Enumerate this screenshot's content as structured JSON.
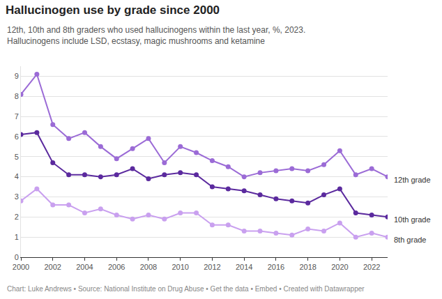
{
  "chart_data": {
    "type": "line",
    "title": "Hallucinogen use by grade since 2000",
    "subtitle": "12th, 10th and 8th graders who used hallucinogens within the last year, %, 2023. Hallucinogens include LSD, ecstasy, magic mushrooms and ketamine",
    "footer": "Chart: Luke Andrews • Source: National Institute on Drug Abuse • Get the data • Embed • Created with Datawrapper",
    "x": [
      2000,
      2001,
      2002,
      2003,
      2004,
      2005,
      2006,
      2007,
      2008,
      2009,
      2010,
      2011,
      2012,
      2013,
      2014,
      2015,
      2016,
      2017,
      2018,
      2019,
      2020,
      2021,
      2022,
      2023
    ],
    "series": [
      {
        "name": "12th grade",
        "color": "#9b6bd6",
        "values": [
          8.1,
          9.1,
          6.6,
          5.9,
          6.2,
          5.5,
          4.9,
          5.4,
          5.9,
          4.7,
          5.5,
          5.2,
          4.8,
          4.5,
          4.0,
          4.2,
          4.3,
          4.4,
          4.3,
          4.6,
          5.3,
          4.1,
          4.4,
          4.0
        ]
      },
      {
        "name": "10th grade",
        "color": "#5b2a9e",
        "values": [
          6.1,
          6.2,
          4.7,
          4.1,
          4.1,
          4.0,
          4.1,
          4.4,
          3.9,
          4.1,
          4.2,
          4.1,
          3.5,
          3.4,
          3.3,
          3.1,
          2.9,
          2.8,
          2.7,
          3.1,
          3.4,
          2.2,
          2.1,
          2.0
        ]
      },
      {
        "name": "8th grade",
        "color": "#c9a0ef",
        "values": [
          2.8,
          3.4,
          2.6,
          2.6,
          2.2,
          2.4,
          2.1,
          1.9,
          2.1,
          1.9,
          2.2,
          2.2,
          1.6,
          1.6,
          1.3,
          1.3,
          1.2,
          1.1,
          1.4,
          1.3,
          1.7,
          1.0,
          1.2,
          1.0
        ]
      }
    ],
    "xlim": [
      2000,
      2023
    ],
    "xticks": [
      2000,
      2002,
      2004,
      2006,
      2008,
      2010,
      2012,
      2014,
      2016,
      2018,
      2020,
      2022
    ],
    "ylim": [
      0,
      9.5
    ],
    "yticks": [
      0,
      1,
      2,
      3,
      4,
      5,
      6,
      7,
      8,
      9
    ],
    "grid": true,
    "marker": "circle"
  }
}
